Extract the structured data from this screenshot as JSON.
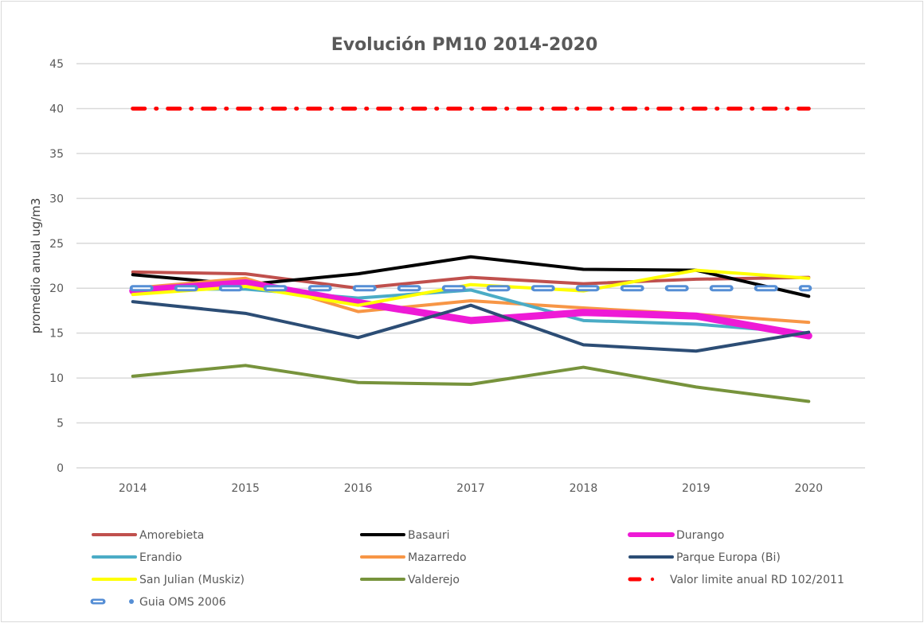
{
  "chart_data": {
    "type": "line",
    "title": "Evolución PM10 2014-2020",
    "xlabel": "",
    "ylabel": "promedio anual ug/m3",
    "x": [
      "2014",
      "2015",
      "2016",
      "2017",
      "2018",
      "2019",
      "2020"
    ],
    "ylim": [
      0,
      45
    ],
    "yticks": [
      0,
      5,
      10,
      15,
      20,
      25,
      30,
      35,
      40,
      45
    ],
    "grid": true,
    "legend_position": "bottom",
    "series": [
      {
        "name": "Amorebieta",
        "color": "#c0504d",
        "style": "solid",
        "values": [
          21.8,
          21.6,
          20.0,
          21.2,
          20.5,
          21.0,
          21.2
        ]
      },
      {
        "name": "Basauri",
        "color": "#000000",
        "style": "solid",
        "values": [
          21.5,
          20.4,
          21.6,
          23.5,
          22.1,
          22.0,
          19.1
        ]
      },
      {
        "name": "Durango",
        "color": "#ee1ad6",
        "style": "thick",
        "values": [
          19.7,
          20.6,
          18.4,
          16.4,
          17.3,
          16.9,
          14.7
        ]
      },
      {
        "name": "Erandio",
        "color": "#4bacc6",
        "style": "solid",
        "values": [
          19.9,
          19.9,
          18.9,
          19.8,
          16.4,
          16.0,
          15.0
        ]
      },
      {
        "name": "Mazarredo",
        "color": "#f79646",
        "style": "solid",
        "values": [
          20.0,
          21.1,
          17.4,
          18.6,
          17.8,
          17.1,
          16.2
        ]
      },
      {
        "name": "Parque Europa (Bi)",
        "color": "#2c4d75",
        "style": "solid",
        "values": [
          18.5,
          17.2,
          14.5,
          18.1,
          13.7,
          13.0,
          15.1
        ]
      },
      {
        "name": "San Julian (Muskiz)",
        "color": "#ffff00",
        "style": "solid",
        "values": [
          19.3,
          20.2,
          18.1,
          20.4,
          19.7,
          22.0,
          21.1
        ]
      },
      {
        "name": "Valderejo",
        "color": "#77933c",
        "style": "solid",
        "values": [
          10.2,
          11.4,
          9.5,
          9.3,
          11.2,
          9.0,
          7.4
        ]
      },
      {
        "name": "Valor limite anual RD 102/2011",
        "color": "#ff0000",
        "style": "dashdot",
        "values": [
          40,
          40,
          40,
          40,
          40,
          40,
          40
        ]
      },
      {
        "name": "Guia OMS 2006",
        "color": "#558ed5",
        "style": "dash-outline",
        "values": [
          20,
          20,
          20,
          20,
          20,
          20,
          20
        ]
      }
    ]
  }
}
